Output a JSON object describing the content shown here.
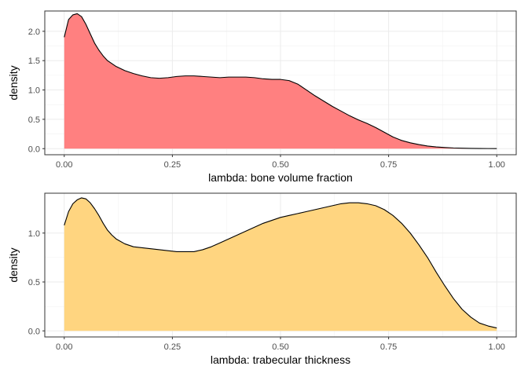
{
  "chart_data": [
    {
      "type": "area",
      "subtype": "density",
      "xlabel": "lambda: bone volume fraction",
      "ylabel": "density",
      "xlim": [
        0,
        1
      ],
      "ylim": [
        0,
        2.3
      ],
      "x_ticks": [
        0.0,
        0.25,
        0.5,
        0.75,
        1.0
      ],
      "x_tick_labels": [
        "0.00",
        "0.25",
        "0.50",
        "0.75",
        "1.00"
      ],
      "y_ticks": [
        0.0,
        0.5,
        1.0,
        1.5,
        2.0
      ],
      "y_tick_labels": [
        "0.0",
        "0.5",
        "1.0",
        "1.5",
        "2.0"
      ],
      "fill_color": "#ff8080",
      "line_color": "#000000",
      "grid": true,
      "series": [
        {
          "x": [
            0.0,
            0.01,
            0.02,
            0.03,
            0.04,
            0.05,
            0.06,
            0.07,
            0.08,
            0.09,
            0.1,
            0.11,
            0.12,
            0.14,
            0.16,
            0.18,
            0.2,
            0.22,
            0.24,
            0.26,
            0.28,
            0.3,
            0.32,
            0.34,
            0.36,
            0.38,
            0.4,
            0.42,
            0.44,
            0.46,
            0.48,
            0.5,
            0.52,
            0.54,
            0.56,
            0.58,
            0.6,
            0.62,
            0.64,
            0.66,
            0.68,
            0.7,
            0.72,
            0.74,
            0.76,
            0.78,
            0.8,
            0.82,
            0.84,
            0.86,
            0.88,
            0.9,
            0.92,
            0.94,
            0.96,
            0.98,
            1.0
          ],
          "y": [
            1.9,
            2.2,
            2.28,
            2.3,
            2.25,
            2.12,
            1.96,
            1.8,
            1.68,
            1.58,
            1.5,
            1.45,
            1.4,
            1.33,
            1.28,
            1.24,
            1.21,
            1.2,
            1.21,
            1.23,
            1.24,
            1.24,
            1.23,
            1.22,
            1.21,
            1.22,
            1.22,
            1.22,
            1.21,
            1.19,
            1.18,
            1.18,
            1.16,
            1.1,
            1.0,
            0.9,
            0.81,
            0.72,
            0.64,
            0.56,
            0.49,
            0.43,
            0.36,
            0.28,
            0.2,
            0.14,
            0.1,
            0.07,
            0.045,
            0.03,
            0.02,
            0.012,
            0.008,
            0.005,
            0.003,
            0.002,
            0.001
          ]
        }
      ]
    },
    {
      "type": "area",
      "subtype": "density",
      "xlabel": "lambda: trabecular thickness",
      "ylabel": "density",
      "xlim": [
        0,
        1
      ],
      "ylim": [
        0,
        1.38
      ],
      "x_ticks": [
        0.0,
        0.25,
        0.5,
        0.75,
        1.0
      ],
      "x_tick_labels": [
        "0.00",
        "0.25",
        "0.50",
        "0.75",
        "1.00"
      ],
      "y_ticks": [
        0.0,
        0.5,
        1.0
      ],
      "y_tick_labels": [
        "0.0",
        "0.5",
        "1.0"
      ],
      "fill_color": "#ffd580",
      "line_color": "#000000",
      "grid": true,
      "series": [
        {
          "x": [
            0.0,
            0.01,
            0.02,
            0.03,
            0.04,
            0.05,
            0.06,
            0.07,
            0.08,
            0.09,
            0.1,
            0.11,
            0.12,
            0.14,
            0.16,
            0.18,
            0.2,
            0.22,
            0.24,
            0.26,
            0.28,
            0.3,
            0.32,
            0.34,
            0.36,
            0.38,
            0.4,
            0.42,
            0.44,
            0.46,
            0.48,
            0.5,
            0.52,
            0.54,
            0.56,
            0.58,
            0.6,
            0.62,
            0.64,
            0.66,
            0.68,
            0.7,
            0.72,
            0.74,
            0.76,
            0.78,
            0.8,
            0.82,
            0.84,
            0.86,
            0.88,
            0.9,
            0.92,
            0.94,
            0.96,
            0.98,
            1.0
          ],
          "y": [
            1.08,
            1.22,
            1.3,
            1.34,
            1.36,
            1.35,
            1.31,
            1.25,
            1.18,
            1.1,
            1.03,
            0.98,
            0.94,
            0.89,
            0.86,
            0.85,
            0.84,
            0.83,
            0.82,
            0.81,
            0.81,
            0.81,
            0.83,
            0.86,
            0.9,
            0.94,
            0.98,
            1.02,
            1.06,
            1.1,
            1.13,
            1.16,
            1.18,
            1.2,
            1.22,
            1.24,
            1.26,
            1.28,
            1.3,
            1.31,
            1.31,
            1.3,
            1.28,
            1.24,
            1.18,
            1.1,
            1.0,
            0.88,
            0.75,
            0.6,
            0.46,
            0.33,
            0.22,
            0.14,
            0.08,
            0.05,
            0.03
          ]
        }
      ]
    }
  ]
}
